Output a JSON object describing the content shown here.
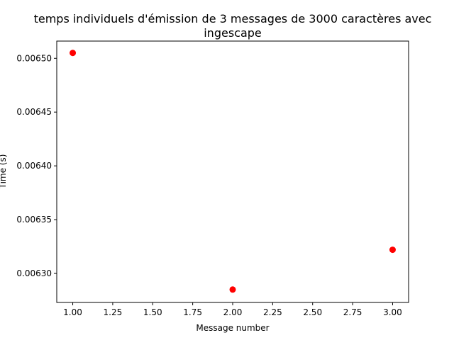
{
  "chart_data": {
    "type": "scatter",
    "title_line1": "temps individuels d'émission de 3 messages de 3000 caractères avec",
    "title_line2": "ingescape",
    "xlabel": "Message number",
    "ylabel": "Time (s)",
    "x": [
      1.0,
      2.0,
      3.0
    ],
    "y": [
      0.006505,
      0.006285,
      0.006322
    ],
    "xlim": [
      0.9,
      3.1
    ],
    "ylim": [
      0.006273,
      0.006516
    ],
    "xticks": [
      1.0,
      1.25,
      1.5,
      1.75,
      2.0,
      2.25,
      2.5,
      2.75,
      3.0
    ],
    "xtick_labels": [
      "1.00",
      "1.25",
      "1.50",
      "1.75",
      "2.00",
      "2.25",
      "2.50",
      "2.75",
      "3.00"
    ],
    "yticks": [
      0.0063,
      0.00635,
      0.0064,
      0.00645,
      0.0065
    ],
    "ytick_labels": [
      "0.00630",
      "0.00635",
      "0.00640",
      "0.00645",
      "0.00650"
    ],
    "marker_color": "#ff0000",
    "grid": false,
    "legend": "none"
  }
}
